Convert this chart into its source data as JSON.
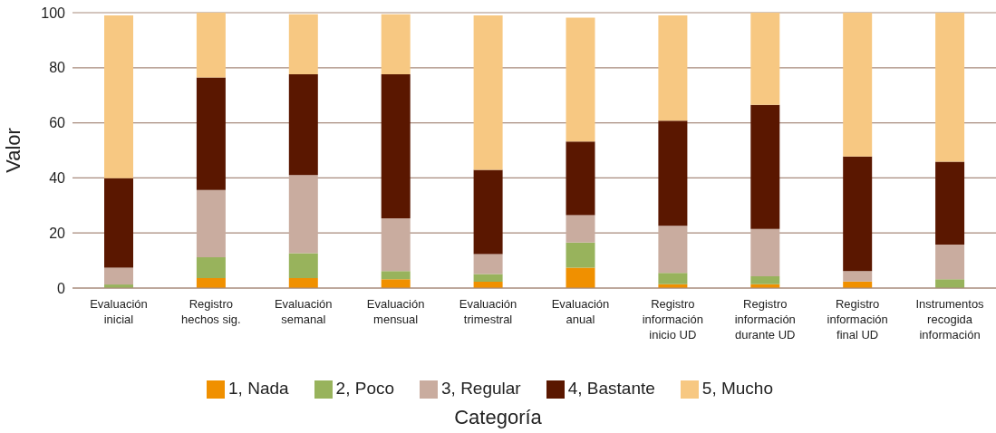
{
  "chart_data": {
    "type": "bar",
    "stacked": true,
    "xlabel": "Categoría",
    "ylabel": "Valor",
    "categories": [
      "Evaluación\ninicial",
      "Registro\nhechos sig.",
      "Evaluación\nsemanal",
      "Evaluación\nmensual",
      "Evaluación\ntrimestral",
      "Evaluación\nanual",
      "Registro\ninformación\ninicio UD",
      "Registro\ninformación\ndurante UD",
      "Registro\ninformación\nfinal UD",
      "Instrumentos\nrecogida\ninformación"
    ],
    "series": [
      {
        "name": "1, Nada",
        "color": "#f09000",
        "values": [
          0,
          3.6,
          3.6,
          3.2,
          2.3,
          7.4,
          1.4,
          1.4,
          2.4,
          0
        ]
      },
      {
        "name": "2, Poco",
        "color": "#98b35c",
        "values": [
          1.3,
          7.6,
          9.1,
          3.0,
          2.8,
          9.1,
          4.1,
          2.9,
          0,
          3.2
        ]
      },
      {
        "name": "3, Regular",
        "color": "#c9ac9f",
        "values": [
          6.1,
          24.4,
          28.3,
          19.1,
          7.2,
          10.0,
          17.1,
          17.2,
          3.8,
          12.6
        ]
      },
      {
        "name": "4, Bastante",
        "color": "#5a1700",
        "values": [
          32.5,
          40.9,
          36.6,
          52.3,
          30.6,
          26.7,
          38.2,
          45.0,
          41.6,
          30.1
        ]
      },
      {
        "name": "5, Mucho",
        "color": "#f7c882",
        "values": [
          59.1,
          23.5,
          21.8,
          21.8,
          56.1,
          45.0,
          38.2,
          33.5,
          52.2,
          54.1
        ]
      }
    ],
    "ylim": [
      0,
      100
    ],
    "yticks": [
      0,
      20,
      40,
      60,
      80,
      100
    ],
    "grid": "y",
    "legend": "bottom"
  }
}
